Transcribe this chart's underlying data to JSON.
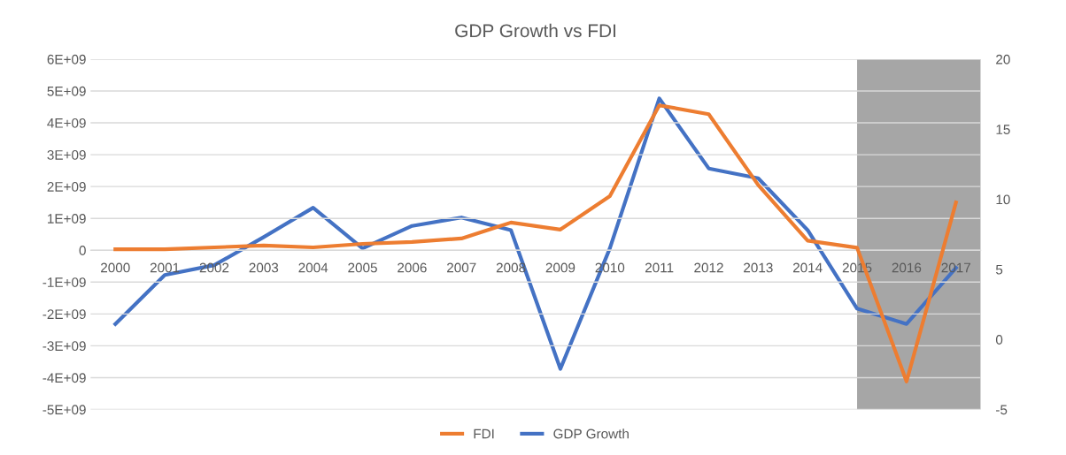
{
  "chart_data": {
    "type": "line",
    "title": "GDP Growth vs FDI",
    "categories": [
      "2000",
      "2001",
      "2002",
      "2003",
      "2004",
      "2005",
      "2006",
      "2007",
      "2008",
      "2009",
      "2010",
      "2011",
      "2012",
      "2013",
      "2014",
      "2015",
      "2016",
      "2017"
    ],
    "series": [
      {
        "name": "FDI",
        "color": "#ed7d31",
        "values": [
          30000000,
          30000000,
          90000000,
          150000000,
          90000000,
          200000000,
          260000000,
          370000000,
          870000000,
          650000000,
          1700000000,
          4550000000,
          4270000000,
          2050000000,
          300000000,
          80000000,
          -4120000000,
          1500000000
        ]
      },
      {
        "name": "GDP Growth",
        "color": "#4472c4",
        "axis": "y2",
        "values": [
          1.1,
          4.6,
          5.3,
          7.3,
          9.4,
          6.5,
          8.1,
          8.7,
          7.8,
          -2.1,
          6.5,
          17.2,
          12.2,
          11.5,
          7.8,
          2.2,
          1.1,
          5.1
        ]
      }
    ],
    "ylim": [
      -5000000000,
      6000000000
    ],
    "yticks": [
      {
        "value": -5000000000,
        "label": "-5E+09"
      },
      {
        "value": -4000000000,
        "label": "-4E+09"
      },
      {
        "value": -3000000000,
        "label": "-3E+09"
      },
      {
        "value": -2000000000,
        "label": "-2E+09"
      },
      {
        "value": -1000000000,
        "label": "-1E+09"
      },
      0,
      {
        "value": 1000000000,
        "label": "1E+09"
      },
      {
        "value": 2000000000,
        "label": "2E+09"
      },
      {
        "value": 3000000000,
        "label": "3E+09"
      },
      {
        "value": 4000000000,
        "label": "4E+09"
      },
      {
        "value": 5000000000,
        "label": "5E+09"
      },
      {
        "value": 6000000000,
        "label": "6E+09"
      }
    ],
    "y2lim": [
      -5,
      20
    ],
    "y2ticks": [
      -5,
      0,
      5,
      10,
      15,
      20
    ],
    "bands": [
      {
        "axis": "x",
        "from": "2015",
        "to": "2017",
        "color": "#a6a6a6"
      }
    ],
    "grid": "y",
    "legend": "bottom",
    "marker": "none",
    "line_style": "solid"
  }
}
